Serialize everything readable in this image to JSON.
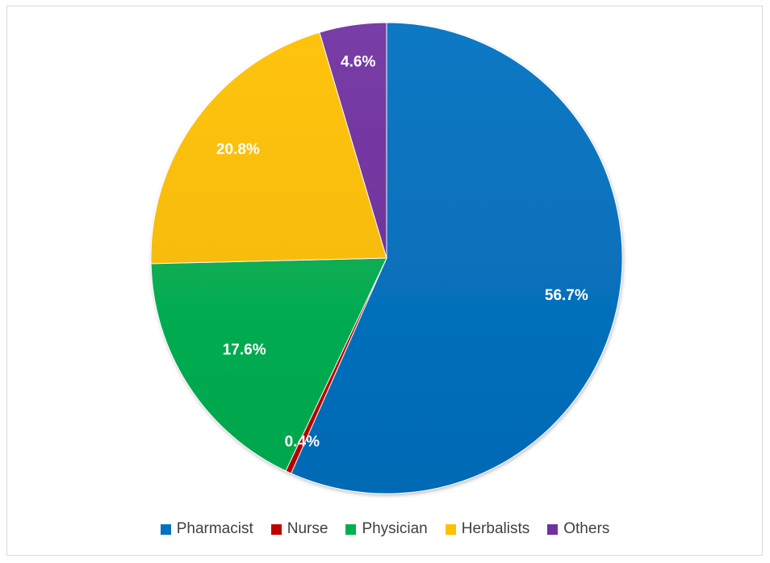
{
  "chart_data": {
    "type": "pie",
    "title": "",
    "legend_position": "bottom",
    "slices": [
      {
        "name": "Pharmacist",
        "value": 56.7,
        "label": "56.7%",
        "color": "#0070C0"
      },
      {
        "name": "Nurse",
        "value": 0.4,
        "label": "0.4%",
        "color": "#C00000"
      },
      {
        "name": "Physician",
        "value": 17.6,
        "label": "17.6%",
        "color": "#00B050"
      },
      {
        "name": "Herbalists",
        "value": 20.8,
        "label": "20.8%",
        "color": "#FFC000"
      },
      {
        "name": "Others",
        "value": 4.6,
        "label": "4.6%",
        "color": "#7030A0"
      }
    ]
  }
}
